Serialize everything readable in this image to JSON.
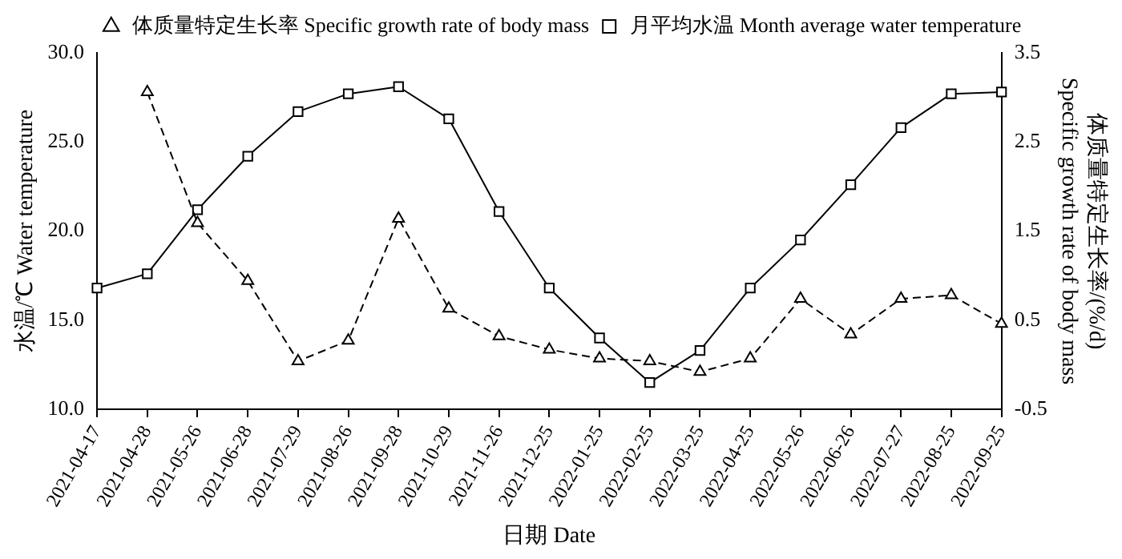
{
  "chart_data": {
    "type": "line",
    "xlabel": "日期 Date",
    "ylabel": "水温/℃ Water temperature",
    "y2label": "体质量特定生长率/(%/d)\nSpecific growth rate of body mass",
    "categories": [
      "2021-04-17",
      "2021-04-28",
      "2021-05-26",
      "2021-06-28",
      "2021-07-29",
      "2021-08-26",
      "2021-09-28",
      "2021-10-29",
      "2021-11-26",
      "2021-12-25",
      "2022-01-25",
      "2022-02-25",
      "2022-03-25",
      "2022-04-25",
      "2022-05-26",
      "2022-06-26",
      "2022-07-27",
      "2022-08-25",
      "2022-09-25"
    ],
    "series": [
      {
        "name": "体质量特定生长率 Specific growth rate of body mass",
        "color": "#000000",
        "axis": "y2",
        "marker": "triangle",
        "line_style": "dashed",
        "values": [
          null,
          3.06,
          1.59,
          0.94,
          0.04,
          0.27,
          1.64,
          0.63,
          0.32,
          0.17,
          0.07,
          0.04,
          -0.08,
          0.07,
          0.74,
          0.34,
          0.74,
          0.78,
          0.46
        ]
      },
      {
        "name": "月平均水温 Month average water temperature",
        "color": "#000000",
        "marker": "square",
        "line_style": "solid",
        "values": [
          16.8,
          17.6,
          21.2,
          24.2,
          26.7,
          27.7,
          28.1,
          26.3,
          21.1,
          16.8,
          14.0,
          11.5,
          13.3,
          16.8,
          19.5,
          22.6,
          25.8,
          27.7,
          27.8
        ]
      }
    ],
    "ylim": [
      10,
      30
    ],
    "yticks": [
      {
        "value": 10,
        "label": "10.0"
      },
      {
        "value": 15,
        "label": "15.0"
      },
      {
        "value": 20,
        "label": "20.0"
      },
      {
        "value": 25,
        "label": "25.0"
      },
      {
        "value": 30,
        "label": "30.0"
      }
    ],
    "y2lim": [
      -0.5,
      3.5
    ],
    "y2ticks": [
      -0.5,
      0.5,
      1.5,
      2.5,
      3.5
    ],
    "grid": false,
    "legend": "top"
  }
}
